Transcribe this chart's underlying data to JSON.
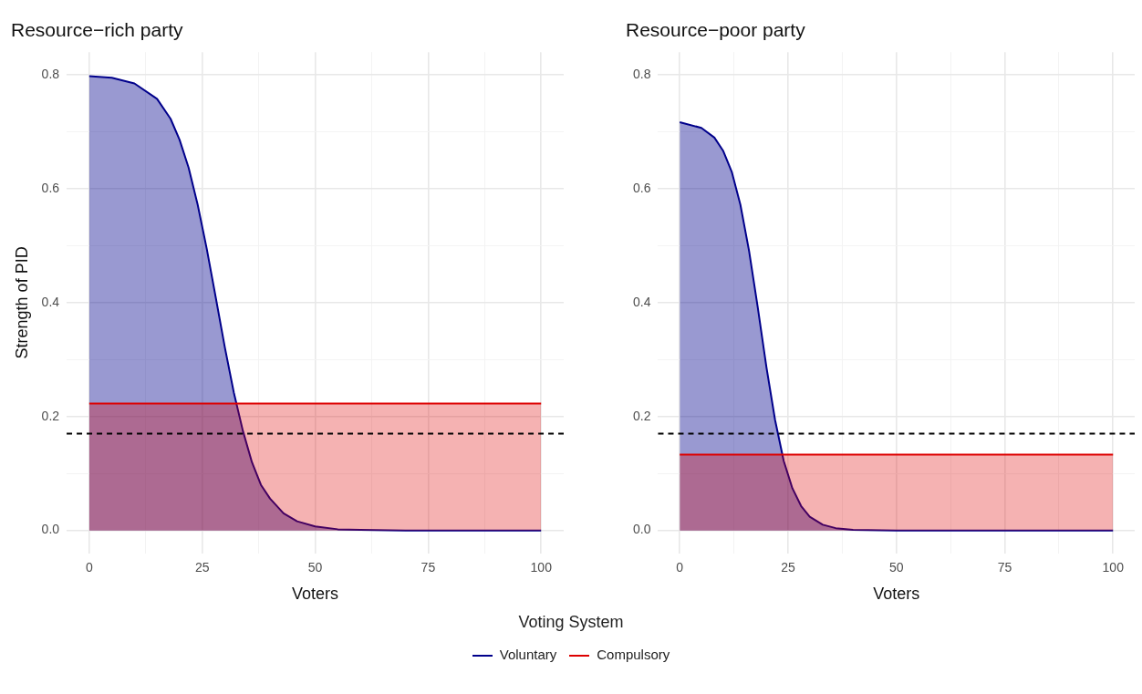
{
  "chart_data": [
    {
      "type": "area",
      "title": "Resource−rich party",
      "xlabel": "Voters",
      "ylabel": "Strength of PID",
      "legend": "bottom",
      "legend_title": "Voting System",
      "grid": true,
      "xlim": [
        -5,
        105
      ],
      "xticks": [
        0,
        {
          "value": 12.5,
          "label": null
        },
        25,
        {
          "value": 37.5,
          "label": null
        },
        50,
        {
          "value": 62.5,
          "label": null
        },
        75,
        {
          "value": 87.5,
          "label": null
        },
        100
      ],
      "ylim": [
        -0.04,
        0.84
      ],
      "yticks": [
        {
          "value": 0,
          "label": "0.0"
        },
        {
          "value": 0.1,
          "label": null
        },
        0.2,
        {
          "value": 0.3,
          "label": null
        },
        0.4,
        {
          "value": 0.5,
          "label": null
        },
        0.6,
        {
          "value": 0.7,
          "label": null
        },
        0.8
      ],
      "ref_lines": [
        {
          "axis": "y",
          "value": 0.17,
          "color": "#000000",
          "line_style": "dashed"
        }
      ],
      "series": [
        {
          "name": "Voluntary",
          "color": "#00008b",
          "x": [
            0,
            5,
            10,
            15,
            18,
            20,
            22,
            24,
            26,
            28,
            30,
            32,
            34,
            36,
            38,
            40,
            43,
            46,
            50,
            55,
            60,
            70,
            80,
            90,
            100
          ],
          "values": [
            0.798,
            0.795,
            0.785,
            0.758,
            0.723,
            0.686,
            0.637,
            0.572,
            0.495,
            0.409,
            0.322,
            0.242,
            0.175,
            0.12,
            0.08,
            0.056,
            0.03,
            0.016,
            0.007,
            0.002,
            0.001,
            0,
            0,
            0,
            0
          ]
        },
        {
          "name": "Compulsory",
          "color": "#dd0000",
          "x": [
            0,
            100
          ],
          "values": [
            0.223,
            0.223
          ]
        }
      ]
    },
    {
      "type": "area",
      "title": "Resource−poor party",
      "xlabel": "Voters",
      "grid": true,
      "xlim": [
        -5,
        105
      ],
      "xticks": [
        0,
        {
          "value": 12.5,
          "label": null
        },
        25,
        {
          "value": 37.5,
          "label": null
        },
        50,
        {
          "value": 62.5,
          "label": null
        },
        75,
        {
          "value": 87.5,
          "label": null
        },
        100
      ],
      "ylim": [
        -0.04,
        0.84
      ],
      "yticks": [
        {
          "value": 0,
          "label": "0.0"
        },
        {
          "value": 0.1,
          "label": null
        },
        0.2,
        {
          "value": 0.3,
          "label": null
        },
        0.4,
        {
          "value": 0.5,
          "label": null
        },
        0.6,
        {
          "value": 0.7,
          "label": null
        },
        0.8
      ],
      "ref_lines": [
        {
          "axis": "y",
          "value": 0.17,
          "color": "#000000",
          "line_style": "dashed"
        }
      ],
      "series": [
        {
          "name": "Voluntary",
          "color": "#00008b",
          "x": [
            0,
            5,
            8,
            10,
            12,
            14,
            16,
            18,
            20,
            22,
            24,
            26,
            28,
            30,
            33,
            36,
            40,
            50,
            100
          ],
          "values": [
            0.717,
            0.707,
            0.69,
            0.667,
            0.63,
            0.572,
            0.491,
            0.392,
            0.287,
            0.194,
            0.122,
            0.074,
            0.043,
            0.024,
            0.01,
            0.004,
            0.001,
            0,
            0
          ]
        },
        {
          "name": "Compulsory",
          "color": "#dd0000",
          "x": [
            0,
            100
          ],
          "values": [
            0.133,
            0.133
          ]
        }
      ]
    }
  ]
}
